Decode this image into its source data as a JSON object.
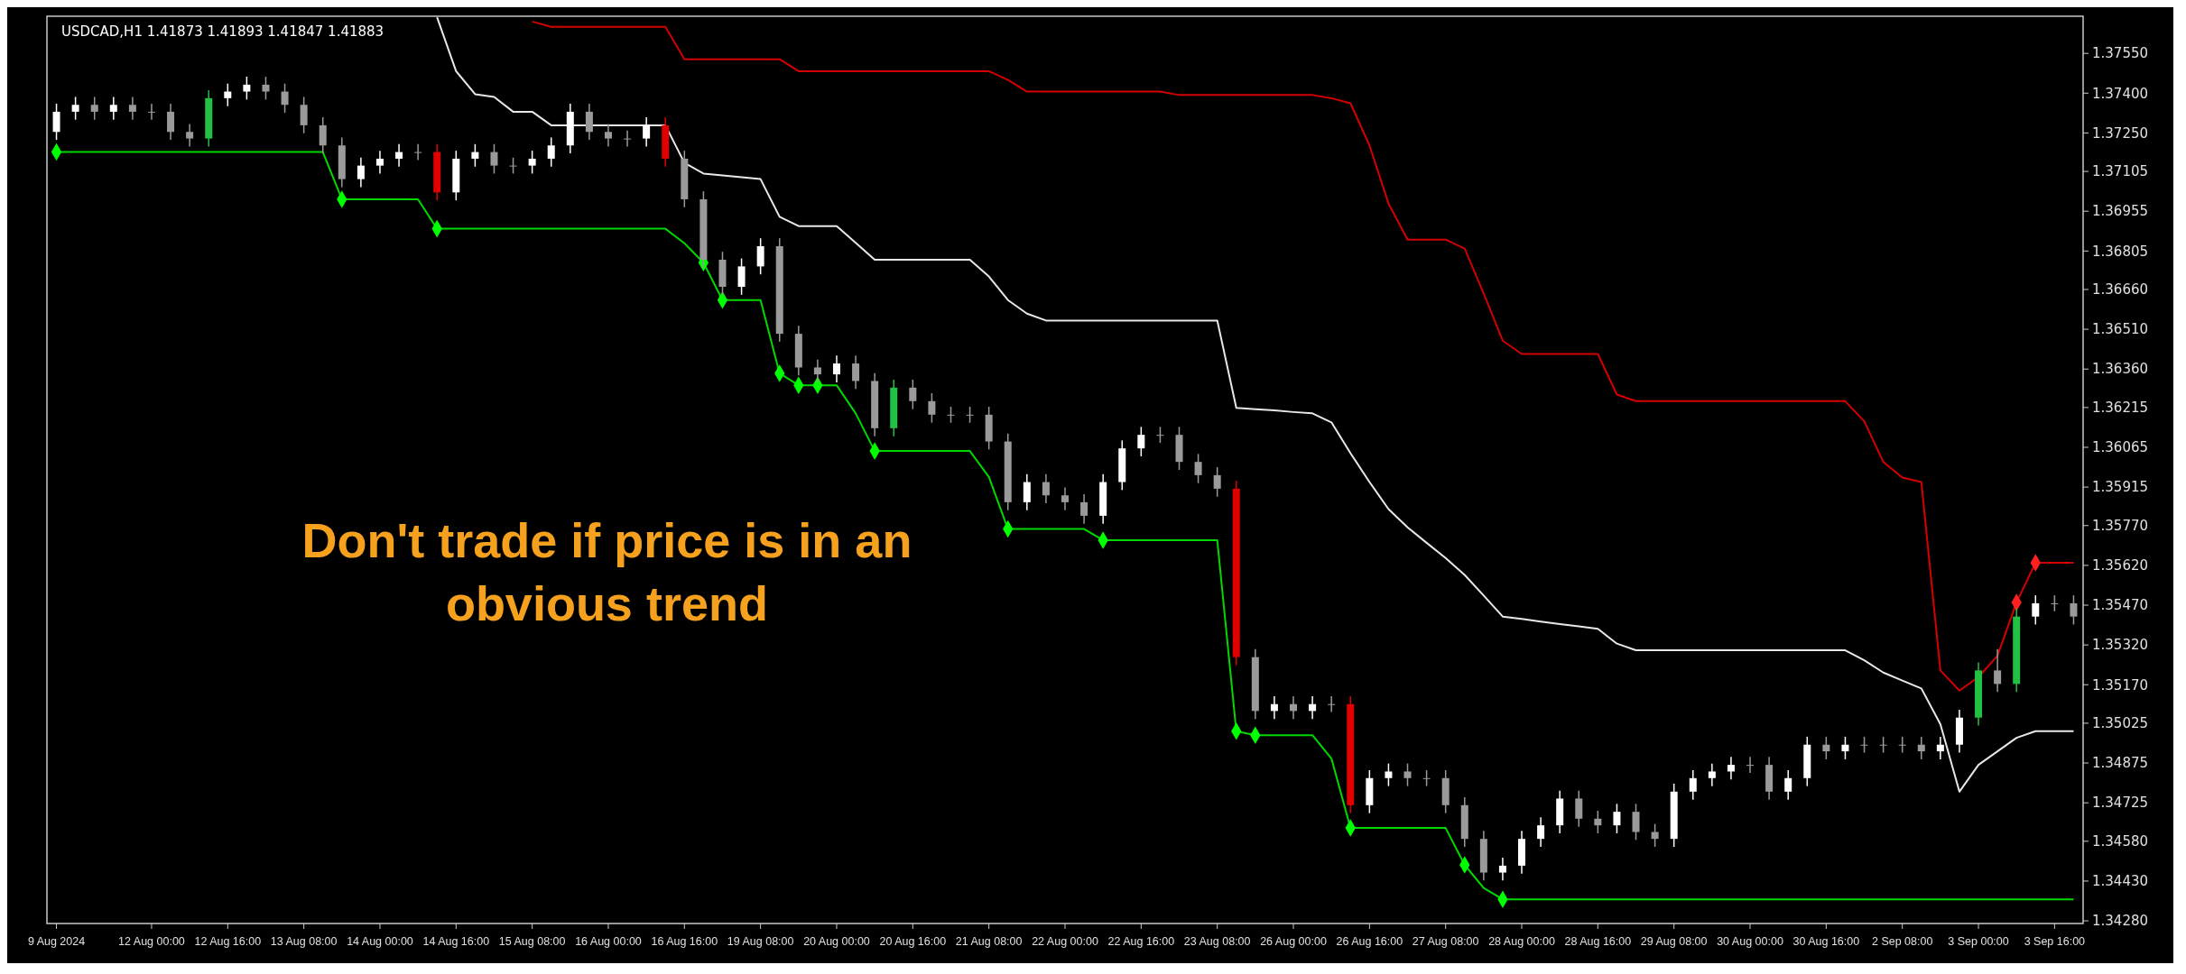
{
  "chart_data": {
    "type": "candlestick",
    "title": "USDCAD,H1  1.41873 1.41893 1.41847 1.41883",
    "annotations": [
      "Don't trade if price is in an obvious trend"
    ],
    "categories": [
      "9 Aug 2024",
      null,
      null,
      null,
      null,
      "12 Aug 00:00",
      null,
      null,
      null,
      "12 Aug 16:00",
      null,
      null,
      null,
      "13 Aug 08:00",
      null,
      null,
      null,
      "14 Aug 00:00",
      null,
      null,
      null,
      "14 Aug 16:00",
      null,
      null,
      null,
      "15 Aug 08:00",
      null,
      null,
      null,
      "16 Aug 00:00",
      null,
      null,
      null,
      "16 Aug 16:00",
      null,
      null,
      null,
      "19 Aug 08:00",
      null,
      null,
      null,
      "20 Aug 00:00",
      null,
      null,
      null,
      "20 Aug 16:00",
      null,
      null,
      null,
      "21 Aug 08:00",
      null,
      null,
      null,
      "22 Aug 00:00",
      null,
      null,
      null,
      "22 Aug 16:00",
      null,
      null,
      null,
      "23 Aug 08:00",
      null,
      null,
      null,
      "26 Aug 00:00",
      null,
      null,
      null,
      "26 Aug 16:00",
      null,
      null,
      null,
      "27 Aug 08:00",
      null,
      null,
      null,
      "28 Aug 00:00",
      null,
      null,
      null,
      "28 Aug 16:00",
      null,
      null,
      null,
      "29 Aug 08:00",
      null,
      null,
      null,
      "30 Aug 00:00",
      null,
      null,
      null,
      "30 Aug 16:00",
      null,
      null,
      null,
      "2 Sep 08:00",
      null,
      null,
      null,
      "3 Sep 00:00",
      null,
      null,
      null,
      "3 Sep 16:00",
      null
    ],
    "ohlc": [
      [
        1.37254,
        1.3736,
        1.37224,
        1.3733
      ],
      [
        1.3733,
        1.37386,
        1.373,
        1.37356
      ],
      [
        1.37356,
        1.37386,
        1.373,
        1.3733
      ],
      [
        1.3733,
        1.37386,
        1.373,
        1.37356
      ],
      [
        1.37356,
        1.37386,
        1.373,
        1.3733
      ],
      [
        1.3733,
        1.3736,
        1.373,
        1.3733
      ],
      [
        1.3733,
        1.3736,
        1.37224,
        1.37254
      ],
      [
        1.37254,
        1.37284,
        1.37199,
        1.37229
      ],
      [
        1.37229,
        1.37411,
        1.37199,
        1.37381
      ],
      [
        1.37381,
        1.37436,
        1.37351,
        1.37406
      ],
      [
        1.37406,
        1.37462,
        1.37376,
        1.37432
      ],
      [
        1.37432,
        1.37462,
        1.37376,
        1.37406
      ],
      [
        1.37406,
        1.37436,
        1.37326,
        1.37356
      ],
      [
        1.37356,
        1.37386,
        1.37249,
        1.37279
      ],
      [
        1.37279,
        1.37309,
        1.37173,
        1.37203
      ],
      [
        1.37203,
        1.37233,
        1.37046,
        1.37076
      ],
      [
        1.37076,
        1.37157,
        1.37046,
        1.37127
      ],
      [
        1.37127,
        1.37183,
        1.37097,
        1.37153
      ],
      [
        1.37153,
        1.37208,
        1.37123,
        1.37178
      ],
      [
        1.37178,
        1.37208,
        1.37148,
        1.37178
      ],
      [
        1.37178,
        1.37208,
        1.36996,
        1.37026
      ],
      [
        1.37026,
        1.37183,
        1.36996,
        1.37153
      ],
      [
        1.37153,
        1.37208,
        1.37123,
        1.37178
      ],
      [
        1.37178,
        1.37208,
        1.37097,
        1.37127
      ],
      [
        1.37127,
        1.37157,
        1.37097,
        1.37127
      ],
      [
        1.37127,
        1.37183,
        1.37097,
        1.37153
      ],
      [
        1.37153,
        1.37233,
        1.37123,
        1.37203
      ],
      [
        1.37203,
        1.3736,
        1.37173,
        1.3733
      ],
      [
        1.3733,
        1.3736,
        1.37224,
        1.37254
      ],
      [
        1.37254,
        1.37284,
        1.37199,
        1.37229
      ],
      [
        1.37229,
        1.37259,
        1.37199,
        1.37229
      ],
      [
        1.37229,
        1.37309,
        1.37199,
        1.37279
      ],
      [
        1.37279,
        1.37309,
        1.37123,
        1.37153
      ],
      [
        1.37153,
        1.37183,
        1.3697,
        1.37
      ],
      [
        1.37,
        1.3703,
        1.36742,
        1.36772
      ],
      [
        1.36772,
        1.36802,
        1.3664,
        1.3667
      ],
      [
        1.3667,
        1.36777,
        1.3664,
        1.36747
      ],
      [
        1.36747,
        1.36853,
        1.36717,
        1.36823
      ],
      [
        1.36823,
        1.36853,
        1.36463,
        1.36493
      ],
      [
        1.36493,
        1.36523,
        1.36336,
        1.36366
      ],
      [
        1.36366,
        1.36396,
        1.3631,
        1.3634
      ],
      [
        1.3634,
        1.36411,
        1.3631,
        1.36381
      ],
      [
        1.36381,
        1.36411,
        1.36285,
        1.36315
      ],
      [
        1.36315,
        1.36345,
        1.36107,
        1.36137
      ],
      [
        1.36137,
        1.3632,
        1.36107,
        1.3629
      ],
      [
        1.3629,
        1.3632,
        1.36209,
        1.36239
      ],
      [
        1.36239,
        1.36269,
        1.36158,
        1.36188
      ],
      [
        1.36188,
        1.36218,
        1.36158,
        1.36188
      ],
      [
        1.36188,
        1.36218,
        1.36158,
        1.36188
      ],
      [
        1.36188,
        1.36218,
        1.36057,
        1.36087
      ],
      [
        1.36087,
        1.36117,
        1.35828,
        1.35858
      ],
      [
        1.35858,
        1.35964,
        1.35828,
        1.35934
      ],
      [
        1.35934,
        1.35964,
        1.35854,
        1.35884
      ],
      [
        1.35884,
        1.35914,
        1.35828,
        1.35858
      ],
      [
        1.35858,
        1.35888,
        1.35777,
        1.35807
      ],
      [
        1.35807,
        1.35964,
        1.35777,
        1.35934
      ],
      [
        1.35934,
        1.36091,
        1.35904,
        1.36061
      ],
      [
        1.36061,
        1.36142,
        1.36031,
        1.36112
      ],
      [
        1.36112,
        1.36142,
        1.36082,
        1.36112
      ],
      [
        1.36112,
        1.36142,
        1.3598,
        1.3601
      ],
      [
        1.3601,
        1.3604,
        1.3593,
        1.3596
      ],
      [
        1.3596,
        1.3599,
        1.35879,
        1.35909
      ],
      [
        1.35909,
        1.35939,
        1.35244,
        1.35274
      ],
      [
        1.35274,
        1.35304,
        1.35041,
        1.35071
      ],
      [
        1.35071,
        1.35127,
        1.35041,
        1.35097
      ],
      [
        1.35097,
        1.35127,
        1.35041,
        1.35071
      ],
      [
        1.35071,
        1.35127,
        1.35041,
        1.35097
      ],
      [
        1.35097,
        1.35127,
        1.35067,
        1.35097
      ],
      [
        1.35097,
        1.35127,
        1.34686,
        1.34716
      ],
      [
        1.34716,
        1.34848,
        1.34686,
        1.34818
      ],
      [
        1.34818,
        1.34873,
        1.34788,
        1.34843
      ],
      [
        1.34843,
        1.34873,
        1.34788,
        1.34818
      ],
      [
        1.34818,
        1.34848,
        1.34788,
        1.34818
      ],
      [
        1.34818,
        1.34848,
        1.34686,
        1.34716
      ],
      [
        1.34716,
        1.34746,
        1.34559,
        1.34589
      ],
      [
        1.34589,
        1.34619,
        1.34432,
        1.34462
      ],
      [
        1.34462,
        1.34518,
        1.34432,
        1.34488
      ],
      [
        1.34488,
        1.34619,
        1.34458,
        1.34589
      ],
      [
        1.34589,
        1.3467,
        1.34559,
        1.3464
      ],
      [
        1.3464,
        1.34771,
        1.3461,
        1.34741
      ],
      [
        1.34741,
        1.34771,
        1.34635,
        1.34665
      ],
      [
        1.34665,
        1.34695,
        1.3461,
        1.3464
      ],
      [
        1.3464,
        1.34721,
        1.3461,
        1.34691
      ],
      [
        1.34691,
        1.34721,
        1.34585,
        1.34615
      ],
      [
        1.34615,
        1.34645,
        1.34559,
        1.34589
      ],
      [
        1.34589,
        1.34797,
        1.34559,
        1.34767
      ],
      [
        1.34767,
        1.34848,
        1.34737,
        1.34818
      ],
      [
        1.34818,
        1.34873,
        1.34788,
        1.34843
      ],
      [
        1.34843,
        1.34898,
        1.34813,
        1.34868
      ],
      [
        1.34868,
        1.34898,
        1.34838,
        1.34868
      ],
      [
        1.34868,
        1.34898,
        1.34737,
        1.34767
      ],
      [
        1.34767,
        1.34848,
        1.34737,
        1.34818
      ],
      [
        1.34818,
        1.34974,
        1.34788,
        1.34944
      ],
      [
        1.34944,
        1.34974,
        1.34889,
        1.34919
      ],
      [
        1.34919,
        1.34974,
        1.34889,
        1.34944
      ],
      [
        1.34944,
        1.34974,
        1.34914,
        1.34944
      ],
      [
        1.34944,
        1.34974,
        1.34914,
        1.34944
      ],
      [
        1.34944,
        1.34974,
        1.34914,
        1.34944
      ],
      [
        1.34944,
        1.34974,
        1.34889,
        1.34919
      ],
      [
        1.34919,
        1.34974,
        1.34889,
        1.34944
      ],
      [
        1.34944,
        1.35076,
        1.34914,
        1.35046
      ],
      [
        1.35046,
        1.35254,
        1.35016,
        1.35224
      ],
      [
        1.35224,
        1.35304,
        1.35143,
        1.35173
      ],
      [
        1.35173,
        1.35457,
        1.35143,
        1.35427
      ],
      [
        1.35427,
        1.35507,
        1.35397,
        1.35477
      ],
      [
        1.35477,
        1.35507,
        1.35447,
        1.35477
      ],
      [
        1.35477,
        1.35507,
        1.35397,
        1.35427
      ]
    ],
    "colors": [
      "#ffffff",
      "#ffffff",
      "#9a9a9a",
      "#ffffff",
      "#9a9a9a",
      "#9a9a9a",
      "#9a9a9a",
      "#9a9a9a",
      "#22c043",
      "#ffffff",
      "#ffffff",
      "#9a9a9a",
      "#9a9a9a",
      "#9a9a9a",
      "#9a9a9a",
      "#9a9a9a",
      "#ffffff",
      "#ffffff",
      "#ffffff",
      "#9a9a9a",
      "#e00000",
      "#ffffff",
      "#ffffff",
      "#9a9a9a",
      "#9a9a9a",
      "#ffffff",
      "#ffffff",
      "#ffffff",
      "#9a9a9a",
      "#9a9a9a",
      "#9a9a9a",
      "#ffffff",
      "#e00000",
      "#9a9a9a",
      "#9a9a9a",
      "#9a9a9a",
      "#ffffff",
      "#ffffff",
      "#9a9a9a",
      "#9a9a9a",
      "#9a9a9a",
      "#ffffff",
      "#9a9a9a",
      "#9a9a9a",
      "#22c043",
      "#9a9a9a",
      "#9a9a9a",
      "#9a9a9a",
      "#9a9a9a",
      "#9a9a9a",
      "#9a9a9a",
      "#ffffff",
      "#9a9a9a",
      "#9a9a9a",
      "#9a9a9a",
      "#ffffff",
      "#ffffff",
      "#ffffff",
      "#9a9a9a",
      "#9a9a9a",
      "#9a9a9a",
      "#9a9a9a",
      "#e00000",
      "#9a9a9a",
      "#ffffff",
      "#9a9a9a",
      "#ffffff",
      "#9a9a9a",
      "#e00000",
      "#ffffff",
      "#ffffff",
      "#9a9a9a",
      "#9a9a9a",
      "#9a9a9a",
      "#9a9a9a",
      "#9a9a9a",
      "#ffffff",
      "#ffffff",
      "#ffffff",
      "#ffffff",
      "#9a9a9a",
      "#9a9a9a",
      "#ffffff",
      "#9a9a9a",
      "#9a9a9a",
      "#ffffff",
      "#ffffff",
      "#ffffff",
      "#ffffff",
      "#9a9a9a",
      "#9a9a9a",
      "#ffffff",
      "#ffffff",
      "#9a9a9a",
      "#ffffff",
      "#9a9a9a",
      "#9a9a9a",
      "#9a9a9a",
      "#9a9a9a",
      "#ffffff",
      "#ffffff",
      "#22c043",
      "#9a9a9a",
      "#22c043",
      "#ffffff",
      "#9a9a9a",
      "#9a9a9a"
    ],
    "series": [
      {
        "type": "line",
        "color": "#00d800",
        "values": [
          1.37178,
          1.37178,
          1.37178,
          1.37178,
          1.37178,
          1.37178,
          1.37178,
          1.37178,
          1.37178,
          1.37178,
          1.37178,
          1.37178,
          1.37178,
          1.37178,
          1.37178,
          1.37,
          1.37,
          1.37,
          1.37,
          1.37,
          1.36889,
          1.36889,
          1.36889,
          1.36889,
          1.36889,
          1.36889,
          1.36889,
          1.36889,
          1.36889,
          1.36889,
          1.36889,
          1.36889,
          1.36889,
          1.36834,
          1.36761,
          1.3662,
          1.3662,
          1.3662,
          1.36344,
          1.36299,
          1.36299,
          1.36299,
          1.36193,
          1.36051,
          1.36051,
          1.36051,
          1.36051,
          1.36051,
          1.36051,
          1.35953,
          1.35757,
          1.35757,
          1.35757,
          1.35757,
          1.35757,
          1.35715,
          1.35715,
          1.35715,
          1.35715,
          1.35715,
          1.35715,
          1.35715,
          1.34995,
          1.3498,
          1.3498,
          1.3498,
          1.3498,
          1.34892,
          1.3463,
          1.3463,
          1.3463,
          1.3463,
          1.3463,
          1.3463,
          1.34491,
          1.34404,
          1.34361,
          1.34361,
          1.34361,
          1.34361,
          1.34361,
          1.34361,
          1.34361,
          1.34361,
          1.34361,
          1.34361,
          1.34361,
          1.34361,
          1.34361,
          1.34361,
          1.34361,
          1.34361,
          1.34361,
          1.34361,
          1.34361,
          1.34361,
          1.34361,
          1.34361,
          1.34361,
          1.34361,
          1.34361,
          1.34361,
          1.34361,
          1.34361,
          1.34361,
          1.34361,
          1.34361
        ]
      },
      {
        "type": "line",
        "color": "#e8e8e8",
        "values": [
          null,
          null,
          null,
          null,
          null,
          null,
          null,
          null,
          null,
          null,
          null,
          null,
          null,
          null,
          null,
          null,
          null,
          null,
          null,
          null,
          1.37686,
          1.37483,
          1.37396,
          1.37386,
          1.3733,
          1.3733,
          1.37279,
          1.37279,
          1.37279,
          1.37279,
          1.37279,
          1.37279,
          1.37279,
          1.37137,
          1.37097,
          1.3709,
          1.37083,
          1.37076,
          1.36934,
          1.36899,
          1.36899,
          1.36899,
          1.36836,
          1.36772,
          1.36772,
          1.36772,
          1.36772,
          1.36772,
          1.36772,
          1.36709,
          1.3662,
          1.36569,
          1.36543,
          1.36543,
          1.36543,
          1.36543,
          1.36543,
          1.36543,
          1.36543,
          1.36543,
          1.36543,
          1.36543,
          1.36214,
          1.36209,
          1.36204,
          1.36198,
          1.36193,
          1.36159,
          1.36043,
          1.35934,
          1.35832,
          1.35763,
          1.35705,
          1.35648,
          1.35584,
          1.35506,
          1.35427,
          1.35418,
          1.35408,
          1.35399,
          1.3539,
          1.35381,
          1.35325,
          1.353,
          1.353,
          1.353,
          1.353,
          1.353,
          1.353,
          1.353,
          1.353,
          1.353,
          1.353,
          1.353,
          1.353,
          1.35262,
          1.35216,
          1.35186,
          1.35156,
          1.35021,
          1.34767,
          1.34868,
          1.34919,
          1.3497,
          1.34995,
          1.34995,
          1.34995
        ]
      },
      {
        "type": "line",
        "color": "#d40000",
        "values": [
          null,
          null,
          null,
          null,
          null,
          null,
          null,
          null,
          null,
          null,
          null,
          null,
          null,
          null,
          null,
          null,
          null,
          null,
          null,
          null,
          null,
          null,
          null,
          null,
          null,
          1.3767,
          1.3765,
          1.3765,
          1.3765,
          1.3765,
          1.3765,
          1.3765,
          1.3765,
          1.37528,
          1.37528,
          1.37528,
          1.37528,
          1.37528,
          1.37528,
          1.37483,
          1.37483,
          1.37483,
          1.37483,
          1.37483,
          1.37483,
          1.37483,
          1.37483,
          1.37483,
          1.37483,
          1.37483,
          1.3745,
          1.37406,
          1.37406,
          1.37406,
          1.37406,
          1.37406,
          1.37406,
          1.37406,
          1.37406,
          1.37393,
          1.37393,
          1.37393,
          1.37393,
          1.37393,
          1.37393,
          1.37393,
          1.37393,
          1.37381,
          1.37362,
          1.37203,
          1.36984,
          1.36848,
          1.36848,
          1.36848,
          1.36814,
          1.36645,
          1.36467,
          1.36417,
          1.36417,
          1.36417,
          1.36417,
          1.36417,
          1.36264,
          1.36239,
          1.36239,
          1.36239,
          1.36239,
          1.36239,
          1.36239,
          1.36239,
          1.36239,
          1.36239,
          1.36239,
          1.36239,
          1.36239,
          1.36163,
          1.3601,
          1.35951,
          1.35934,
          1.35224,
          1.35148,
          1.35199,
          1.35279,
          1.3548,
          1.3563,
          1.3563,
          1.3563
        ]
      },
      {
        "type": "scatter",
        "marker": "diamond",
        "color": "#00ff00",
        "values": [
          1.37178,
          null,
          null,
          null,
          null,
          null,
          null,
          null,
          null,
          null,
          null,
          null,
          null,
          null,
          null,
          1.37,
          null,
          null,
          null,
          null,
          1.36889,
          null,
          null,
          null,
          null,
          null,
          null,
          null,
          null,
          null,
          null,
          null,
          null,
          null,
          1.36761,
          1.3662,
          null,
          null,
          1.36344,
          1.36299,
          1.36299,
          null,
          null,
          1.36051,
          null,
          null,
          null,
          null,
          null,
          null,
          1.35757,
          null,
          null,
          null,
          null,
          1.35715,
          null,
          null,
          null,
          null,
          null,
          null,
          1.34995,
          1.3498,
          null,
          null,
          null,
          null,
          1.3463,
          null,
          null,
          null,
          null,
          null,
          1.34491,
          null,
          1.34361,
          null,
          null,
          null,
          null,
          null,
          null,
          null,
          null,
          null,
          null,
          null,
          null,
          null,
          null,
          null,
          null,
          null,
          null,
          null,
          null,
          null,
          null,
          null,
          null,
          null,
          null,
          null,
          null,
          null,
          null
        ]
      },
      {
        "type": "scatter",
        "marker": "diamond",
        "color": "#ff2020",
        "values": [
          null,
          null,
          null,
          null,
          null,
          null,
          null,
          null,
          null,
          null,
          null,
          null,
          null,
          null,
          null,
          null,
          null,
          null,
          null,
          null,
          null,
          null,
          null,
          null,
          null,
          null,
          null,
          null,
          null,
          null,
          null,
          null,
          null,
          null,
          null,
          null,
          null,
          null,
          null,
          null,
          null,
          null,
          null,
          null,
          null,
          null,
          null,
          null,
          null,
          null,
          null,
          null,
          null,
          null,
          null,
          null,
          null,
          null,
          null,
          null,
          null,
          null,
          null,
          null,
          null,
          null,
          null,
          null,
          null,
          null,
          null,
          null,
          null,
          null,
          null,
          null,
          null,
          null,
          null,
          null,
          null,
          null,
          null,
          null,
          null,
          null,
          null,
          null,
          null,
          null,
          null,
          null,
          null,
          null,
          null,
          null,
          null,
          null,
          null,
          null,
          null,
          null,
          null,
          1.3548,
          1.3563,
          null,
          null
        ]
      }
    ],
    "ylim": [
      1.3427,
      1.3769
    ],
    "yticks": [
      {
        "value": 1.3755,
        "label": "1.37550"
      },
      {
        "value": 1.374,
        "label": "1.37400"
      },
      {
        "value": 1.3725,
        "label": "1.37250"
      },
      1.37105,
      1.36955,
      1.36805,
      {
        "value": 1.3666,
        "label": "1.36660"
      },
      {
        "value": 1.3651,
        "label": "1.36510"
      },
      {
        "value": 1.3636,
        "label": "1.36360"
      },
      1.36215,
      1.36065,
      1.35915,
      {
        "value": 1.3577,
        "label": "1.35770"
      },
      {
        "value": 1.3562,
        "label": "1.35620"
      },
      {
        "value": 1.3547,
        "label": "1.35470"
      },
      {
        "value": 1.3532,
        "label": "1.35320"
      },
      {
        "value": 1.3517,
        "label": "1.35170"
      },
      1.35025,
      1.34875,
      1.34725,
      {
        "value": 1.3458,
        "label": "1.34580"
      },
      {
        "value": 1.3443,
        "label": "1.34430"
      },
      {
        "value": 1.3428,
        "label": "1.34280"
      }
    ],
    "grid": false
  }
}
